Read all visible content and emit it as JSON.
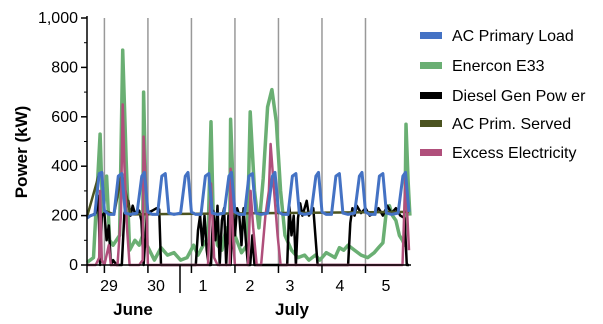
{
  "chart_data": {
    "type": "line",
    "title": "",
    "xlabel": "",
    "ylabel": "Power (kW)",
    "ylim": [
      0,
      1000
    ],
    "yticks": [
      0,
      200,
      400,
      600,
      800,
      1000
    ],
    "ytick_labels": [
      "0",
      "200",
      "400",
      "600",
      "800",
      "1,000"
    ],
    "grid": "vertical gridlines at day boundaries",
    "legend_position": "right",
    "x_day_labels": [
      "29",
      "30",
      "1",
      "2",
      "3",
      "4",
      "5"
    ],
    "x_month_labels": [
      "June",
      "July"
    ],
    "x_range_days": [
      0,
      7.4
    ],
    "series": [
      {
        "name": "AC Primary Load",
        "color": "#4472C4",
        "points": [
          [
            0,
            190
          ],
          [
            0.08,
            200
          ],
          [
            0.18,
            205
          ],
          [
            0.28,
            370
          ],
          [
            0.34,
            375
          ],
          [
            0.4,
            220
          ],
          [
            0.5,
            205
          ],
          [
            0.62,
            205
          ],
          [
            0.72,
            360
          ],
          [
            0.8,
            370
          ],
          [
            0.88,
            210
          ],
          [
            1,
            205
          ],
          [
            1.15,
            210
          ],
          [
            1.26,
            360
          ],
          [
            1.32,
            375
          ],
          [
            1.4,
            215
          ],
          [
            1.5,
            205
          ],
          [
            1.62,
            205
          ],
          [
            1.72,
            360
          ],
          [
            1.8,
            370
          ],
          [
            1.88,
            210
          ],
          [
            2,
            205
          ],
          [
            2.15,
            210
          ],
          [
            2.26,
            360
          ],
          [
            2.32,
            375
          ],
          [
            2.4,
            215
          ],
          [
            2.5,
            205
          ],
          [
            2.62,
            205
          ],
          [
            2.72,
            360
          ],
          [
            2.8,
            370
          ],
          [
            2.88,
            210
          ],
          [
            3,
            205
          ],
          [
            3.15,
            210
          ],
          [
            3.26,
            360
          ],
          [
            3.32,
            375
          ],
          [
            3.4,
            215
          ],
          [
            3.5,
            205
          ],
          [
            3.62,
            205
          ],
          [
            3.72,
            360
          ],
          [
            3.8,
            370
          ],
          [
            3.88,
            210
          ],
          [
            4,
            205
          ],
          [
            4.15,
            210
          ],
          [
            4.26,
            360
          ],
          [
            4.32,
            375
          ],
          [
            4.4,
            215
          ],
          [
            4.5,
            205
          ],
          [
            4.62,
            205
          ],
          [
            4.72,
            360
          ],
          [
            4.8,
            370
          ],
          [
            4.88,
            210
          ],
          [
            5,
            205
          ],
          [
            5.15,
            210
          ],
          [
            5.26,
            360
          ],
          [
            5.32,
            375
          ],
          [
            5.4,
            215
          ],
          [
            5.5,
            205
          ],
          [
            5.62,
            205
          ],
          [
            5.72,
            360
          ],
          [
            5.8,
            370
          ],
          [
            5.88,
            210
          ],
          [
            6,
            205
          ],
          [
            6.15,
            210
          ],
          [
            6.26,
            360
          ],
          [
            6.32,
            375
          ],
          [
            6.4,
            215
          ],
          [
            6.5,
            205
          ],
          [
            6.62,
            205
          ],
          [
            6.72,
            360
          ],
          [
            6.8,
            370
          ],
          [
            6.88,
            210
          ],
          [
            7,
            205
          ],
          [
            7.15,
            210
          ],
          [
            7.26,
            360
          ],
          [
            7.32,
            375
          ],
          [
            7.4,
            215
          ]
        ]
      },
      {
        "name": "Enercon E33",
        "color": "#6AAF73",
        "points": [
          [
            0,
            10
          ],
          [
            0.15,
            30
          ],
          [
            0.3,
            530
          ],
          [
            0.36,
            200
          ],
          [
            0.45,
            360
          ],
          [
            0.52,
            100
          ],
          [
            0.6,
            80
          ],
          [
            0.75,
            120
          ],
          [
            0.82,
            870
          ],
          [
            0.9,
            420
          ],
          [
            0.98,
            60
          ],
          [
            1.1,
            100
          ],
          [
            1.2,
            80
          ],
          [
            1.28,
            120
          ],
          [
            1.3,
            700
          ],
          [
            1.38,
            80
          ],
          [
            1.55,
            20
          ],
          [
            1.7,
            70
          ],
          [
            1.85,
            40
          ],
          [
            2,
            50
          ],
          [
            2.15,
            20
          ],
          [
            2.3,
            30
          ],
          [
            2.45,
            80
          ],
          [
            2.55,
            40
          ],
          [
            2.7,
            90
          ],
          [
            2.78,
            110
          ],
          [
            2.85,
            580
          ],
          [
            2.9,
            200
          ],
          [
            3,
            80
          ],
          [
            3.1,
            60
          ],
          [
            3.2,
            150
          ],
          [
            3.28,
            120
          ],
          [
            3.3,
            590
          ],
          [
            3.4,
            120
          ],
          [
            3.55,
            50
          ],
          [
            3.68,
            80
          ],
          [
            3.75,
            620
          ],
          [
            3.85,
            300
          ],
          [
            3.95,
            150
          ],
          [
            4.05,
            350
          ],
          [
            4.15,
            640
          ],
          [
            4.25,
            710
          ],
          [
            4.35,
            580
          ],
          [
            4.45,
            300
          ],
          [
            4.55,
            120
          ],
          [
            4.7,
            60
          ],
          [
            4.85,
            30
          ],
          [
            5,
            40
          ],
          [
            5.1,
            20
          ],
          [
            5.25,
            40
          ],
          [
            5.35,
            20
          ],
          [
            5.5,
            50
          ],
          [
            5.6,
            40
          ],
          [
            5.7,
            30
          ],
          [
            5.8,
            70
          ],
          [
            5.9,
            60
          ],
          [
            6,
            80
          ],
          [
            6.15,
            60
          ],
          [
            6.3,
            40
          ],
          [
            6.45,
            30
          ],
          [
            6.6,
            50
          ],
          [
            6.7,
            70
          ],
          [
            6.8,
            90
          ],
          [
            6.88,
            220
          ],
          [
            6.95,
            240
          ],
          [
            7.02,
            200
          ],
          [
            7.1,
            180
          ],
          [
            7.18,
            120
          ],
          [
            7.25,
            100
          ],
          [
            7.3,
            80
          ],
          [
            7.33,
            570
          ],
          [
            7.38,
            340
          ],
          [
            7.42,
            200
          ]
        ]
      },
      {
        "name": "Diesel Gen Pow er",
        "color": "#000000",
        "points": [
          [
            0,
            195
          ],
          [
            0.1,
            200
          ],
          [
            0.2,
            210
          ],
          [
            0.26,
            280
          ],
          [
            0.3,
            0
          ],
          [
            0.34,
            200
          ],
          [
            0.4,
            210
          ],
          [
            0.45,
            100
          ],
          [
            0.5,
            160
          ],
          [
            0.55,
            0
          ],
          [
            0.6,
            20
          ],
          [
            0.68,
            0
          ],
          [
            0.72,
            0
          ],
          [
            0.8,
            0
          ],
          [
            0.86,
            210
          ],
          [
            0.95,
            260
          ],
          [
            1,
            200
          ],
          [
            1.05,
            240
          ],
          [
            1.1,
            210
          ],
          [
            1.2,
            220
          ],
          [
            1.25,
            180
          ],
          [
            1.3,
            0
          ],
          [
            1.38,
            210
          ],
          [
            1.5,
            220
          ],
          [
            1.6,
            230
          ],
          [
            1.66,
            225
          ],
          [
            1.7,
            0
          ],
          [
            1.8,
            0
          ],
          [
            1.9,
            0
          ],
          [
            2,
            0
          ],
          [
            2.1,
            0
          ],
          [
            2.2,
            0
          ],
          [
            2.3,
            0
          ],
          [
            2.4,
            0
          ],
          [
            2.5,
            0
          ],
          [
            2.55,
            140
          ],
          [
            2.6,
            200
          ],
          [
            2.65,
            80
          ],
          [
            2.7,
            200
          ],
          [
            2.75,
            60
          ],
          [
            2.8,
            0
          ],
          [
            2.85,
            0
          ],
          [
            2.9,
            220
          ],
          [
            2.95,
            100
          ],
          [
            3,
            240
          ],
          [
            3.05,
            0
          ],
          [
            3.1,
            180
          ],
          [
            3.15,
            230
          ],
          [
            3.2,
            0
          ],
          [
            3.25,
            200
          ],
          [
            3.3,
            0
          ],
          [
            3.35,
            230
          ],
          [
            3.4,
            120
          ],
          [
            3.45,
            230
          ],
          [
            3.5,
            200
          ],
          [
            3.55,
            80
          ],
          [
            3.6,
            230
          ],
          [
            3.65,
            100
          ],
          [
            3.7,
            0
          ],
          [
            3.75,
            0
          ],
          [
            3.8,
            120
          ],
          [
            3.85,
            0
          ],
          [
            3.9,
            0
          ],
          [
            4,
            0
          ],
          [
            4.1,
            0
          ],
          [
            4.2,
            0
          ],
          [
            4.3,
            0
          ],
          [
            4.4,
            0
          ],
          [
            4.5,
            0
          ],
          [
            4.6,
            0
          ],
          [
            4.65,
            240
          ],
          [
            4.7,
            120
          ],
          [
            4.75,
            200
          ],
          [
            4.8,
            0
          ],
          [
            4.85,
            190
          ],
          [
            4.9,
            250
          ],
          [
            4.95,
            200
          ],
          [
            5,
            230
          ],
          [
            5.05,
            260
          ],
          [
            5.1,
            200
          ],
          [
            5.2,
            230
          ],
          [
            5.3,
            0
          ],
          [
            5.4,
            0
          ],
          [
            5.5,
            0
          ],
          [
            5.6,
            0
          ],
          [
            5.7,
            0
          ],
          [
            5.8,
            0
          ],
          [
            5.9,
            0
          ],
          [
            6,
            0
          ],
          [
            6.05,
            170
          ],
          [
            6.1,
            230
          ],
          [
            6.15,
            200
          ],
          [
            6.2,
            240
          ],
          [
            6.3,
            210
          ],
          [
            6.4,
            230
          ],
          [
            6.5,
            200
          ],
          [
            6.6,
            210
          ],
          [
            6.7,
            230
          ],
          [
            6.8,
            200
          ],
          [
            6.9,
            240
          ],
          [
            7,
            210
          ],
          [
            7.1,
            230
          ],
          [
            7.2,
            200
          ],
          [
            7.3,
            190
          ],
          [
            7.35,
            0
          ],
          [
            7.4,
            0
          ]
        ]
      },
      {
        "name": "AC Prim. Served",
        "color": "#4B5320",
        "points": [
          [
            0,
            195
          ],
          [
            0.28,
            370
          ],
          [
            0.34,
            375
          ],
          [
            0.4,
            220
          ],
          [
            0.62,
            205
          ],
          [
            0.8,
            370
          ],
          [
            1,
            205
          ],
          [
            7.4,
            215
          ]
        ]
      },
      {
        "name": "Excess Electricity",
        "color": "#B04F7B",
        "points": [
          [
            0,
            0
          ],
          [
            0.2,
            0
          ],
          [
            0.28,
            30
          ],
          [
            0.3,
            300
          ],
          [
            0.34,
            20
          ],
          [
            0.4,
            0
          ],
          [
            0.5,
            80
          ],
          [
            0.55,
            0
          ],
          [
            0.7,
            0
          ],
          [
            0.78,
            200
          ],
          [
            0.82,
            650
          ],
          [
            0.86,
            400
          ],
          [
            0.92,
            150
          ],
          [
            0.98,
            0
          ],
          [
            1.2,
            0
          ],
          [
            1.28,
            20
          ],
          [
            1.3,
            520
          ],
          [
            1.36,
            300
          ],
          [
            1.4,
            0
          ],
          [
            1.6,
            0
          ],
          [
            1.7,
            0
          ],
          [
            1.9,
            0
          ],
          [
            2.1,
            0
          ],
          [
            2.3,
            0
          ],
          [
            2.5,
            0
          ],
          [
            2.78,
            0
          ],
          [
            2.85,
            330
          ],
          [
            2.92,
            30
          ],
          [
            3,
            0
          ],
          [
            3.28,
            0
          ],
          [
            3.3,
            390
          ],
          [
            3.36,
            100
          ],
          [
            3.4,
            0
          ],
          [
            3.7,
            0
          ],
          [
            3.76,
            300
          ],
          [
            3.82,
            150
          ],
          [
            3.9,
            0
          ],
          [
            4,
            0
          ],
          [
            4.1,
            200
          ],
          [
            4.18,
            300
          ],
          [
            4.22,
            490
          ],
          [
            4.3,
            300
          ],
          [
            4.38,
            120
          ],
          [
            4.45,
            0
          ],
          [
            4.7,
            0
          ],
          [
            5,
            0
          ],
          [
            5.5,
            0
          ],
          [
            6,
            0
          ],
          [
            6.5,
            0
          ],
          [
            7,
            0
          ],
          [
            7.25,
            0
          ],
          [
            7.32,
            370
          ],
          [
            7.36,
            200
          ],
          [
            7.4,
            60
          ]
        ]
      }
    ]
  }
}
